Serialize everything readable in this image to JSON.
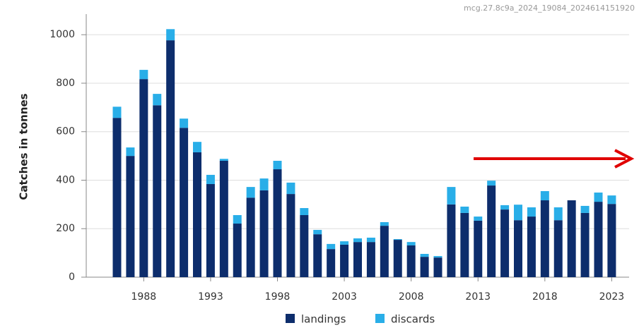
{
  "chart_data": {
    "type": "bar",
    "stacked": true,
    "source_id": "mcg.27.8c9a_2024_19084_2024614151920",
    "y_label": "Catches in tonnes",
    "x": [
      1986,
      1987,
      1988,
      1989,
      1990,
      1991,
      1992,
      1993,
      1994,
      1995,
      1996,
      1997,
      1998,
      1999,
      2000,
      2001,
      2002,
      2003,
      2004,
      2005,
      2006,
      2007,
      2008,
      2009,
      2010,
      2011,
      2012,
      2013,
      2014,
      2015,
      2016,
      2017,
      2018,
      2019,
      2020,
      2021,
      2022,
      2023
    ],
    "series": [
      {
        "name": "landings",
        "color": "#0d2d6c",
        "values": [
          657,
          500,
          817,
          709,
          977,
          616,
          515,
          384,
          480,
          221,
          328,
          358,
          445,
          343,
          256,
          177,
          116,
          134,
          145,
          145,
          212,
          154,
          131,
          84,
          81,
          300,
          265,
          233,
          378,
          279,
          235,
          250,
          317,
          235,
          317,
          265,
          311,
          302
        ]
      },
      {
        "name": "discards",
        "color": "#29aee8",
        "values": [
          46,
          35,
          38,
          47,
          46,
          38,
          43,
          38,
          8,
          35,
          44,
          49,
          35,
          47,
          29,
          18,
          21,
          14,
          15,
          18,
          15,
          3,
          14,
          12,
          6,
          72,
          26,
          17,
          20,
          18,
          64,
          38,
          38,
          53,
          0,
          29,
          38,
          35
        ]
      }
    ],
    "xlim": [
      1983.7,
      2024.3
    ],
    "xticks": [
      1988,
      1993,
      1998,
      2003,
      2008,
      2013,
      2018,
      2023
    ],
    "ylim": [
      0,
      1085
    ],
    "yticks": [
      0,
      200,
      400,
      600,
      800,
      1000
    ],
    "grid": true
  }
}
